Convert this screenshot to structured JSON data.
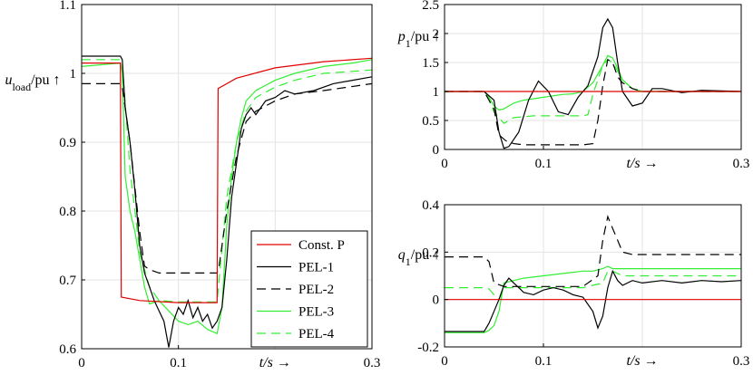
{
  "chart_data": [
    {
      "type": "line",
      "id": "uload",
      "xlabel": "t/s →",
      "ylabel_main": "u",
      "ylabel_sub": "load",
      "ylabel_tail": "/pu ↑",
      "xlim": [
        0,
        0.3
      ],
      "ylim": [
        0.6,
        1.1
      ],
      "xticks": [
        0,
        0.1,
        0.3
      ],
      "xtick_labels": [
        "0",
        "0.1",
        "0.3"
      ],
      "yticks": [
        0.6,
        0.7,
        0.8,
        0.9,
        1.0,
        1.1
      ],
      "ytick_labels": [
        "0.6",
        "0.7",
        "0.8",
        "0.9",
        "1",
        "1.1"
      ],
      "legend": [
        "Const. P",
        "PEL-1",
        "PEL-2",
        "PEL-3",
        "PEL-4"
      ],
      "series": [
        {
          "name": "Const. P",
          "x": [
            0,
            0.04,
            0.041,
            0.06,
            0.1,
            0.14,
            0.141,
            0.16,
            0.2,
            0.25,
            0.3
          ],
          "values": [
            1.015,
            1.015,
            0.675,
            0.67,
            0.667,
            0.667,
            0.978,
            0.993,
            1.008,
            1.017,
            1.022
          ]
        },
        {
          "name": "PEL-1",
          "x": [
            0,
            0.04,
            0.042,
            0.045,
            0.05,
            0.055,
            0.06,
            0.065,
            0.07,
            0.075,
            0.08,
            0.085,
            0.09,
            0.095,
            0.1,
            0.105,
            0.11,
            0.115,
            0.12,
            0.125,
            0.13,
            0.135,
            0.14,
            0.145,
            0.15,
            0.155,
            0.16,
            0.165,
            0.17,
            0.175,
            0.18,
            0.19,
            0.2,
            0.21,
            0.22,
            0.24,
            0.26,
            0.28,
            0.3
          ],
          "values": [
            1.025,
            1.025,
            1.02,
            0.95,
            0.9,
            0.83,
            0.75,
            0.71,
            0.69,
            0.67,
            0.655,
            0.64,
            0.602,
            0.64,
            0.66,
            0.65,
            0.67,
            0.645,
            0.66,
            0.64,
            0.65,
            0.63,
            0.64,
            0.66,
            0.73,
            0.82,
            0.87,
            0.92,
            0.94,
            0.95,
            0.94,
            0.96,
            0.965,
            0.975,
            0.97,
            0.975,
            0.985,
            0.99,
            0.995
          ]
        },
        {
          "name": "PEL-2",
          "x": [
            0,
            0.04,
            0.042,
            0.05,
            0.06,
            0.065,
            0.07,
            0.08,
            0.1,
            0.14,
            0.142,
            0.15,
            0.16,
            0.17,
            0.18,
            0.2,
            0.22,
            0.25,
            0.3
          ],
          "values": [
            0.985,
            0.985,
            0.98,
            0.9,
            0.77,
            0.72,
            0.715,
            0.71,
            0.71,
            0.71,
            0.72,
            0.8,
            0.88,
            0.93,
            0.945,
            0.96,
            0.97,
            0.975,
            0.985
          ]
        },
        {
          "name": "PEL-3",
          "x": [
            0,
            0.04,
            0.042,
            0.045,
            0.05,
            0.055,
            0.06,
            0.065,
            0.07,
            0.08,
            0.09,
            0.1,
            0.11,
            0.12,
            0.13,
            0.14,
            0.145,
            0.15,
            0.155,
            0.16,
            0.165,
            0.17,
            0.18,
            0.2,
            0.22,
            0.25,
            0.28,
            0.3
          ],
          "values": [
            1.01,
            1.015,
            1.0,
            0.85,
            0.8,
            0.77,
            0.73,
            0.69,
            0.665,
            0.67,
            0.655,
            0.64,
            0.635,
            0.64,
            0.628,
            0.622,
            0.66,
            0.78,
            0.85,
            0.9,
            0.935,
            0.96,
            0.975,
            0.99,
            1.0,
            1.01,
            1.015,
            1.02
          ]
        },
        {
          "name": "PEL-4",
          "x": [
            0,
            0.04,
            0.042,
            0.05,
            0.055,
            0.06,
            0.07,
            0.08,
            0.1,
            0.14,
            0.142,
            0.15,
            0.16,
            0.17,
            0.18,
            0.2,
            0.22,
            0.25,
            0.3
          ],
          "values": [
            1.02,
            1.02,
            1.015,
            0.86,
            0.8,
            0.74,
            0.69,
            0.67,
            0.668,
            0.668,
            0.7,
            0.82,
            0.9,
            0.945,
            0.965,
            0.98,
            0.99,
            1.0,
            1.005
          ]
        }
      ]
    },
    {
      "type": "line",
      "id": "p1",
      "xlabel": "t/s →",
      "ylabel_main": "p",
      "ylabel_sub": "1",
      "ylabel_tail": "/pu ↑",
      "xlim": [
        0,
        0.3
      ],
      "ylim": [
        0,
        2.5
      ],
      "xticks": [
        0,
        0.1,
        0.3
      ],
      "xtick_labels": [
        "0",
        "0.1",
        "0.3"
      ],
      "yticks": [
        0,
        0.5,
        1,
        1.5,
        2,
        2.5
      ],
      "ytick_labels": [
        "0",
        "0.5",
        "1",
        "1.5",
        "2",
        "2.5"
      ],
      "series": [
        {
          "name": "Const. P",
          "x": [
            0,
            0.3
          ],
          "values": [
            1.0,
            1.0
          ]
        },
        {
          "name": "PEL-1",
          "x": [
            0,
            0.04,
            0.05,
            0.055,
            0.06,
            0.065,
            0.075,
            0.085,
            0.095,
            0.105,
            0.115,
            0.125,
            0.135,
            0.145,
            0.155,
            0.16,
            0.165,
            0.17,
            0.175,
            0.18,
            0.19,
            0.2,
            0.21,
            0.22,
            0.24,
            0.26,
            0.3
          ],
          "values": [
            1.0,
            1.0,
            0.85,
            0.3,
            0.02,
            0.05,
            0.3,
            0.85,
            1.18,
            1.0,
            0.65,
            0.6,
            0.9,
            1.1,
            1.6,
            2.1,
            2.25,
            2.1,
            1.5,
            1.0,
            0.75,
            0.8,
            1.05,
            1.05,
            0.98,
            1.02,
            1.0
          ]
        },
        {
          "name": "PEL-2",
          "x": [
            0,
            0.04,
            0.05,
            0.055,
            0.062,
            0.07,
            0.08,
            0.1,
            0.14,
            0.15,
            0.155,
            0.16,
            0.165,
            0.17,
            0.175,
            0.18,
            0.19,
            0.2,
            0.22,
            0.3
          ],
          "values": [
            1.0,
            1.0,
            0.7,
            0.25,
            0.15,
            0.1,
            0.08,
            0.08,
            0.08,
            0.1,
            0.5,
            1.1,
            1.55,
            1.5,
            1.25,
            1.15,
            1.05,
            1.0,
            1.0,
            1.0
          ]
        },
        {
          "name": "PEL-3",
          "x": [
            0,
            0.04,
            0.045,
            0.05,
            0.055,
            0.06,
            0.07,
            0.08,
            0.1,
            0.12,
            0.13,
            0.14,
            0.15,
            0.16,
            0.165,
            0.17,
            0.175,
            0.18,
            0.19,
            0.2,
            0.22,
            0.3
          ],
          "values": [
            1.0,
            1.0,
            0.9,
            0.75,
            0.68,
            0.7,
            0.8,
            0.85,
            0.9,
            0.95,
            0.96,
            1.0,
            1.15,
            1.45,
            1.62,
            1.58,
            1.4,
            1.2,
            1.05,
            1.0,
            1.0,
            1.0
          ]
        },
        {
          "name": "PEL-4",
          "x": [
            0,
            0.04,
            0.045,
            0.05,
            0.06,
            0.065,
            0.07,
            0.09,
            0.14,
            0.145,
            0.15,
            0.16,
            0.165,
            0.17,
            0.18,
            0.19,
            0.2,
            0.3
          ],
          "values": [
            1.0,
            1.0,
            0.85,
            0.65,
            0.45,
            0.5,
            0.55,
            0.58,
            0.58,
            0.6,
            0.95,
            1.45,
            1.55,
            1.5,
            1.2,
            1.05,
            1.0,
            1.0
          ]
        }
      ]
    },
    {
      "type": "line",
      "id": "q1",
      "xlabel": "t/s →",
      "ylabel_main": "q",
      "ylabel_sub": "1",
      "ylabel_tail": "/pu ↑",
      "xlim": [
        0,
        0.3
      ],
      "ylim": [
        -0.2,
        0.4
      ],
      "xticks": [
        0,
        0.1,
        0.3
      ],
      "xtick_labels": [
        "0",
        "0.1",
        "0.3"
      ],
      "yticks": [
        -0.2,
        0,
        0.2,
        0.4
      ],
      "ytick_labels": [
        "-0.2",
        "0",
        "0.2",
        "0.4"
      ],
      "series": [
        {
          "name": "Const. P",
          "x": [
            0,
            0.3
          ],
          "values": [
            0.0,
            0.0
          ]
        },
        {
          "name": "PEL-1",
          "x": [
            0,
            0.04,
            0.045,
            0.05,
            0.055,
            0.06,
            0.065,
            0.07,
            0.075,
            0.08,
            0.09,
            0.1,
            0.11,
            0.12,
            0.13,
            0.14,
            0.15,
            0.155,
            0.16,
            0.165,
            0.17,
            0.175,
            0.18,
            0.19,
            0.2,
            0.22,
            0.24,
            0.26,
            0.28,
            0.3
          ],
          "values": [
            -0.135,
            -0.135,
            -0.1,
            -0.05,
            0.0,
            0.06,
            0.09,
            0.07,
            0.05,
            0.03,
            0.02,
            0.04,
            0.05,
            0.04,
            0.02,
            0.01,
            -0.05,
            -0.12,
            -0.07,
            0.05,
            0.12,
            0.08,
            0.06,
            0.08,
            0.07,
            0.08,
            0.07,
            0.08,
            0.075,
            0.08
          ]
        },
        {
          "name": "PEL-2",
          "x": [
            0,
            0.04,
            0.045,
            0.05,
            0.06,
            0.08,
            0.14,
            0.155,
            0.16,
            0.165,
            0.17,
            0.175,
            0.18,
            0.19,
            0.2,
            0.22,
            0.25,
            0.3
          ],
          "values": [
            0.18,
            0.18,
            0.16,
            0.07,
            0.055,
            0.055,
            0.055,
            0.1,
            0.25,
            0.35,
            0.3,
            0.25,
            0.2,
            0.19,
            0.19,
            0.19,
            0.19,
            0.19
          ]
        },
        {
          "name": "PEL-3",
          "x": [
            0,
            0.04,
            0.045,
            0.05,
            0.055,
            0.06,
            0.07,
            0.08,
            0.1,
            0.12,
            0.14,
            0.15,
            0.16,
            0.165,
            0.17,
            0.175,
            0.18,
            0.2,
            0.25,
            0.3
          ],
          "values": [
            -0.14,
            -0.14,
            -0.13,
            -0.11,
            -0.05,
            0.07,
            0.08,
            0.09,
            0.1,
            0.11,
            0.12,
            0.12,
            0.13,
            0.14,
            0.13,
            0.13,
            0.13,
            0.13,
            0.13,
            0.13
          ]
        },
        {
          "name": "PEL-4",
          "x": [
            0,
            0.04,
            0.045,
            0.05,
            0.055,
            0.06,
            0.07,
            0.08,
            0.1,
            0.14,
            0.15,
            0.16,
            0.165,
            0.17,
            0.18,
            0.2,
            0.25,
            0.3
          ],
          "values": [
            0.05,
            0.05,
            0.045,
            0.02,
            0.0,
            0.05,
            0.05,
            0.05,
            0.05,
            0.05,
            0.06,
            0.07,
            0.12,
            0.12,
            0.1,
            0.1,
            0.1,
            0.1
          ]
        }
      ]
    }
  ],
  "series_colors": {
    "Const. P": "#e00000",
    "PEL-1": "#000000",
    "PEL-2": "#000000",
    "PEL-3": "#33ee33",
    "PEL-4": "#33ee33"
  },
  "series_dashed": {
    "Const. P": false,
    "PEL-1": false,
    "PEL-2": true,
    "PEL-3": false,
    "PEL-4": true
  }
}
